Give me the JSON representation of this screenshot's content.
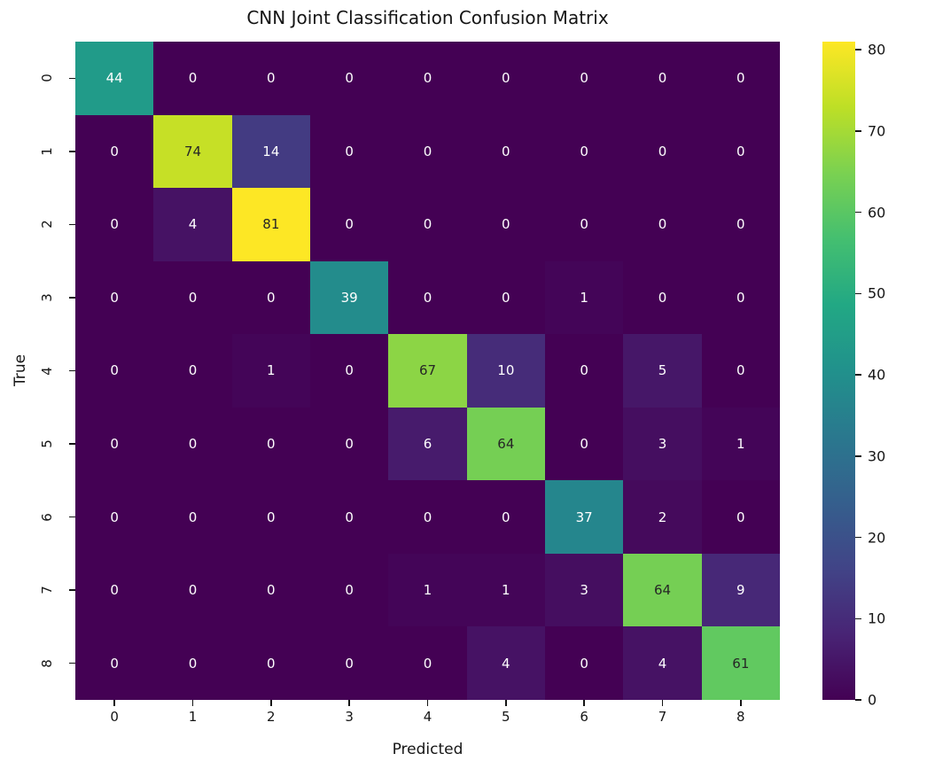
{
  "chart_data": {
    "type": "heatmap",
    "title": "CNN Joint Classification Confusion Matrix",
    "xlabel": "Predicted",
    "ylabel": "True",
    "x_tick_labels": [
      "0",
      "1",
      "2",
      "3",
      "4",
      "5",
      "6",
      "7",
      "8"
    ],
    "y_tick_labels": [
      "0",
      "1",
      "2",
      "3",
      "4",
      "5",
      "6",
      "7",
      "8"
    ],
    "matrix": [
      [
        44,
        0,
        0,
        0,
        0,
        0,
        0,
        0,
        0
      ],
      [
        0,
        74,
        14,
        0,
        0,
        0,
        0,
        0,
        0
      ],
      [
        0,
        4,
        81,
        0,
        0,
        0,
        0,
        0,
        0
      ],
      [
        0,
        0,
        0,
        39,
        0,
        0,
        1,
        0,
        0
      ],
      [
        0,
        0,
        1,
        0,
        67,
        10,
        0,
        5,
        0
      ],
      [
        0,
        0,
        0,
        0,
        6,
        64,
        0,
        3,
        1
      ],
      [
        0,
        0,
        0,
        0,
        0,
        0,
        37,
        2,
        0
      ],
      [
        0,
        0,
        0,
        0,
        1,
        1,
        3,
        64,
        9
      ],
      [
        0,
        0,
        0,
        0,
        0,
        4,
        0,
        4,
        61
      ]
    ],
    "vmin": 0,
    "vmax": 81,
    "colormap": "viridis",
    "annotated": true,
    "grid": false,
    "legend_position": "colorbar-right",
    "colorbar_ticks": [
      0,
      10,
      20,
      30,
      40,
      50,
      60,
      70,
      80
    ]
  },
  "style": {
    "background": "#ffffff",
    "text_color": "#151515",
    "annot_color_on_dark": "#ffffff",
    "annot_color_on_light": "#262626",
    "viridis_stops": [
      "#440154",
      "#482475",
      "#414487",
      "#355f8d",
      "#2a788e",
      "#21918c",
      "#22a884",
      "#44bf70",
      "#7ad151",
      "#bddf26",
      "#fde725"
    ]
  }
}
